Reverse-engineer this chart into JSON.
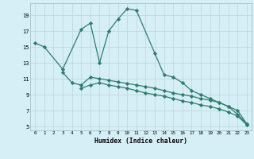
{
  "xlabel": "Humidex (Indice chaleur)",
  "xlim": [
    -0.5,
    23.5
  ],
  "ylim": [
    4.5,
    20.5
  ],
  "yticks": [
    5,
    7,
    9,
    11,
    13,
    15,
    17,
    19
  ],
  "xticks": [
    0,
    1,
    2,
    3,
    4,
    5,
    6,
    7,
    8,
    9,
    10,
    11,
    12,
    13,
    14,
    15,
    16,
    17,
    18,
    19,
    20,
    21,
    22,
    23
  ],
  "background_color": "#d6eef5",
  "grid_color": "#c0d8e0",
  "line_color": "#2e7d6e",
  "line1_x": [
    0,
    1,
    3,
    5,
    6,
    7,
    8,
    9,
    10,
    11,
    13,
    14,
    15,
    16,
    17,
    18,
    19,
    20,
    21,
    22,
    23
  ],
  "line1_y": [
    15.5,
    15.0,
    12.2,
    17.2,
    18.0,
    13.0,
    17.0,
    18.5,
    19.8,
    19.6,
    14.2,
    11.5,
    11.2,
    10.5,
    9.5,
    9.0,
    8.5,
    8.0,
    7.5,
    6.5,
    5.3
  ],
  "line2_x": [
    3,
    4,
    5,
    6,
    7,
    8,
    9,
    10,
    11,
    12,
    13,
    14,
    15,
    16,
    17,
    18,
    19,
    20,
    21,
    22,
    23
  ],
  "line2_y": [
    11.8,
    10.5,
    10.2,
    11.2,
    11.0,
    10.8,
    10.6,
    10.4,
    10.2,
    10.0,
    9.8,
    9.5,
    9.2,
    9.0,
    8.8,
    8.5,
    8.3,
    8.0,
    7.5,
    7.0,
    5.3
  ],
  "line3_x": [
    5,
    6,
    7,
    8,
    9,
    10,
    11,
    12,
    13,
    14,
    15,
    16,
    17,
    18,
    19,
    20,
    21,
    22,
    23
  ],
  "line3_y": [
    9.8,
    10.2,
    10.5,
    10.2,
    10.0,
    9.8,
    9.5,
    9.2,
    9.0,
    8.8,
    8.5,
    8.2,
    8.0,
    7.7,
    7.5,
    7.2,
    6.8,
    6.3,
    5.2
  ]
}
